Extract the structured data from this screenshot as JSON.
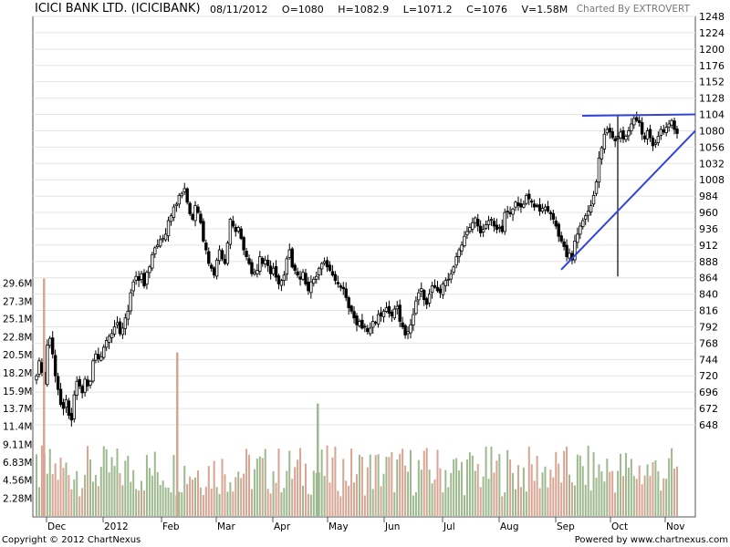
{
  "header": {
    "title": "ICICI BANK LTD. (ICICIBANK)",
    "date": "08/11/2012",
    "open": "O=1080",
    "high": "H=1082.9",
    "low": "L=1071.2",
    "close": "C=1076",
    "volume": "V=1.58M",
    "credit": "Charted By EXTROVERT"
  },
  "footer": {
    "copyright": "Copyright © 2012 ChartNexus",
    "powered": "Powered by www.chartnexus.com"
  },
  "colors": {
    "up_volume": "#9db98e",
    "down_volume": "#d7a592",
    "trendline": "#3344dd",
    "candle": "#000000",
    "grid": "#e4e4e4"
  },
  "chart_data": {
    "type": "candlestick",
    "price_axis": {
      "ticks": [
        "1248",
        "1224",
        "1200",
        "1176",
        "1152",
        "1128",
        "1104",
        "1080",
        "1056",
        "1032",
        "1008",
        "984",
        "960",
        "936",
        "912",
        "888",
        "864",
        "840",
        "816",
        "792",
        "768",
        "744",
        "720",
        "696",
        "672",
        "648"
      ],
      "range": [
        636,
        1252
      ]
    },
    "volume_axis": {
      "ticks": [
        "29.6M",
        "27.3M",
        "25.1M",
        "22.8M",
        "20.5M",
        "18.2M",
        "15.9M",
        "13.7M",
        "11.4M",
        "9.11M",
        "6.83M",
        "4.56M",
        "2.28M"
      ],
      "range": [
        0,
        32
      ]
    },
    "x_labels": [
      "Dec",
      "2012",
      "Feb",
      "Mar",
      "Apr",
      "May",
      "Jun",
      "Jul",
      "Aug",
      "Sep",
      "Oct",
      "Nov"
    ],
    "closes": [
      720,
      742,
      725,
      708,
      765,
      775,
      752,
      720,
      700,
      678,
      672,
      685,
      662,
      655,
      692,
      712,
      705,
      695,
      715,
      705,
      712,
      742,
      752,
      745,
      748,
      762,
      772,
      778,
      782,
      792,
      798,
      782,
      790,
      805,
      815,
      842,
      858,
      866,
      860,
      870,
      852,
      872,
      880,
      898,
      908,
      912,
      920,
      922,
      928,
      948,
      955,
      968,
      972,
      985,
      988,
      995,
      975,
      958,
      950,
      970,
      960,
      945,
      918,
      905,
      885,
      878,
      868,
      890,
      905,
      892,
      885,
      915,
      950,
      940,
      932,
      938,
      922,
      905,
      895,
      885,
      870,
      872,
      875,
      895,
      885,
      890,
      882,
      870,
      878,
      865,
      855,
      860,
      868,
      892,
      905,
      880,
      875,
      868,
      862,
      872,
      855,
      845,
      858,
      862,
      866,
      878,
      885,
      888,
      880,
      875,
      868,
      860,
      855,
      850,
      848,
      835,
      820,
      815,
      805,
      795,
      800,
      790,
      792,
      785,
      790,
      800,
      798,
      810,
      808,
      815,
      820,
      812,
      808,
      818,
      822,
      800,
      792,
      780,
      785,
      795,
      810,
      830,
      842,
      848,
      832,
      825,
      840,
      852,
      850,
      845,
      842,
      855,
      860,
      862,
      870,
      880,
      895,
      905,
      912,
      925,
      932,
      938,
      945,
      952,
      940,
      930,
      935,
      942,
      948,
      950,
      940,
      935,
      938,
      932,
      960,
      962,
      958,
      965,
      975,
      970,
      968,
      972,
      985,
      980,
      975,
      968,
      970,
      962,
      966,
      968,
      962,
      958,
      950,
      940,
      925,
      918,
      910,
      895,
      900,
      890,
      918,
      928,
      940,
      948,
      955,
      962,
      970,
      985,
      1005,
      1040,
      1055,
      1075,
      1082,
      1078,
      1070,
      1065,
      1072,
      1078,
      1068,
      1072,
      1080,
      1090,
      1098,
      1095,
      1092,
      1075,
      1068,
      1080,
      1070,
      1058,
      1062,
      1072,
      1082,
      1078,
      1085,
      1090,
      1095,
      1082,
      1076
    ],
    "volume_spikes": [
      {
        "label": "Dec",
        "value": 30.2
      },
      {
        "label": "Feb",
        "value": 20.8
      },
      {
        "label": "May",
        "value": 14.3
      }
    ],
    "trendlines": [
      {
        "name": "upper-resistance",
        "from": {
          "x": "Sep",
          "y": 1104
        },
        "to": {
          "x": "Nov",
          "y": 1105
        }
      },
      {
        "name": "lower-support",
        "from": {
          "x": "Sep",
          "y": 875
        },
        "to": {
          "x": "Nov",
          "y": 1080
        }
      }
    ]
  }
}
